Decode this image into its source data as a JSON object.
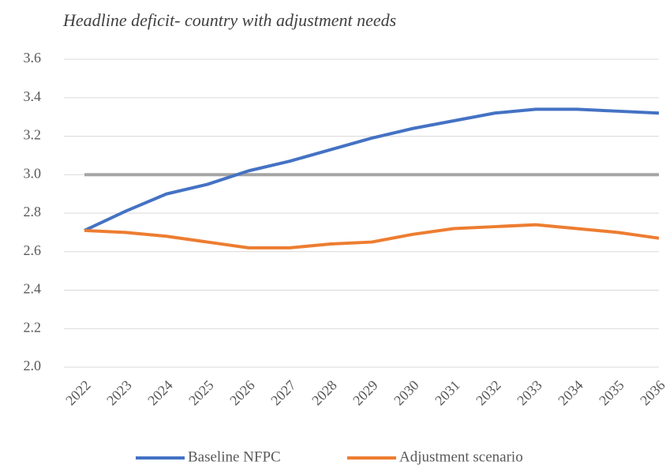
{
  "chart_data": {
    "type": "line",
    "title": "Headline deficit- country with adjustment needs",
    "categories": [
      "2022",
      "2023",
      "2024",
      "2025",
      "2026",
      "2027",
      "2028",
      "2029",
      "2030",
      "2031",
      "2032",
      "2033",
      "2034",
      "2035",
      "2036"
    ],
    "series": [
      {
        "name": "Baseline NFPC",
        "color": "#4472c4",
        "values": [
          2.71,
          2.81,
          2.9,
          2.95,
          3.02,
          3.07,
          3.13,
          3.19,
          3.24,
          3.28,
          3.32,
          3.34,
          3.34,
          3.33,
          3.32
        ]
      },
      {
        "name": "Adjustment scenario",
        "color": "#ed7d31",
        "values": [
          2.71,
          2.7,
          2.68,
          2.65,
          2.62,
          2.62,
          2.64,
          2.65,
          2.69,
          2.72,
          2.73,
          2.74,
          2.72,
          2.7,
          2.67
        ]
      }
    ],
    "reference_line": {
      "value": 3,
      "color": "#a5a5a5"
    },
    "ylim": [
      2,
      3.6
    ],
    "yticks": [
      {
        "value": 2,
        "label": "2.0"
      },
      2.2,
      2.4,
      2.6,
      2.8,
      {
        "value": 3,
        "label": "3.0"
      },
      3.2,
      3.4,
      3.6
    ],
    "grid": true,
    "legend": "bottom"
  }
}
